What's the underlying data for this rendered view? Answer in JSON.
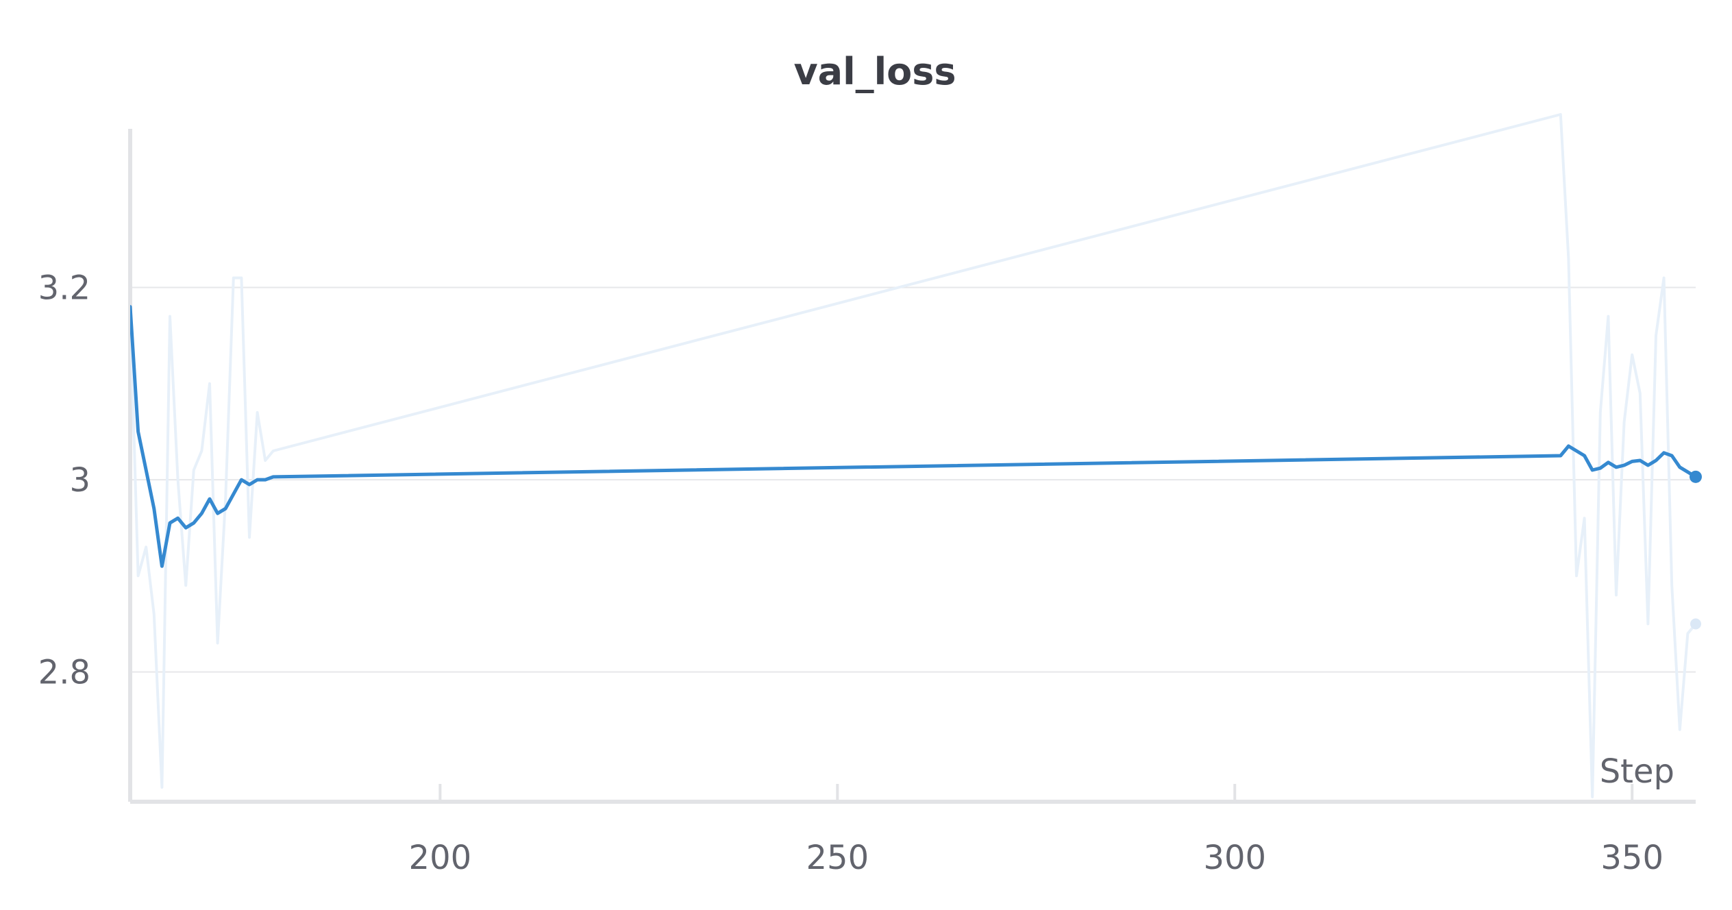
{
  "chart_data": {
    "type": "line",
    "title": "val_loss",
    "xlabel": "Step",
    "ylabel": "",
    "xlim": [
      161,
      358
    ],
    "ylim": [
      2.665,
      3.385
    ],
    "xticks": [
      200,
      250,
      300,
      350
    ],
    "xtick_labels": [
      "200",
      "250",
      "300",
      "350"
    ],
    "yticks": [
      2.8,
      3.0,
      3.2
    ],
    "ytick_labels": [
      "2.8",
      "3",
      "3.2"
    ],
    "grid": true,
    "legend": "none",
    "series": [
      {
        "role": "raw",
        "color": "#e7f0f9",
        "x": [
          161,
          162,
          163,
          164,
          165,
          166,
          167,
          168,
          169,
          170,
          171,
          172,
          173,
          174,
          175,
          176,
          177,
          178,
          179,
          341,
          342,
          343,
          344,
          345,
          346,
          347,
          348,
          349,
          350,
          351,
          352,
          353,
          354,
          355,
          356,
          357,
          358
        ],
        "y": [
          3.18,
          2.9,
          2.93,
          2.86,
          2.68,
          3.17,
          3.0,
          2.89,
          3.01,
          3.03,
          3.1,
          2.83,
          2.98,
          3.21,
          3.21,
          2.94,
          3.07,
          3.02,
          3.03,
          3.38,
          3.23,
          2.9,
          2.96,
          2.67,
          3.07,
          3.17,
          2.88,
          3.06,
          3.13,
          3.09,
          2.85,
          3.15,
          3.21,
          2.89,
          2.74,
          2.84,
          2.85
        ]
      },
      {
        "role": "smoothed",
        "color": "#3589d0",
        "x": [
          161,
          162,
          163,
          164,
          165,
          166,
          167,
          168,
          169,
          170,
          171,
          172,
          173,
          174,
          175,
          176,
          177,
          178,
          179,
          341,
          342,
          343,
          344,
          345,
          346,
          347,
          348,
          349,
          350,
          351,
          352,
          353,
          354,
          355,
          356,
          357,
          358
        ],
        "y": [
          3.18,
          3.05,
          3.01,
          2.97,
          2.91,
          2.955,
          2.96,
          2.95,
          2.955,
          2.965,
          2.98,
          2.965,
          2.97,
          2.985,
          3.0,
          2.995,
          3.0,
          3.0,
          3.003,
          3.025,
          3.035,
          3.03,
          3.025,
          3.01,
          3.012,
          3.018,
          3.013,
          3.015,
          3.019,
          3.02,
          3.015,
          3.02,
          3.028,
          3.025,
          3.013,
          3.008,
          3.003
        ]
      }
    ]
  }
}
